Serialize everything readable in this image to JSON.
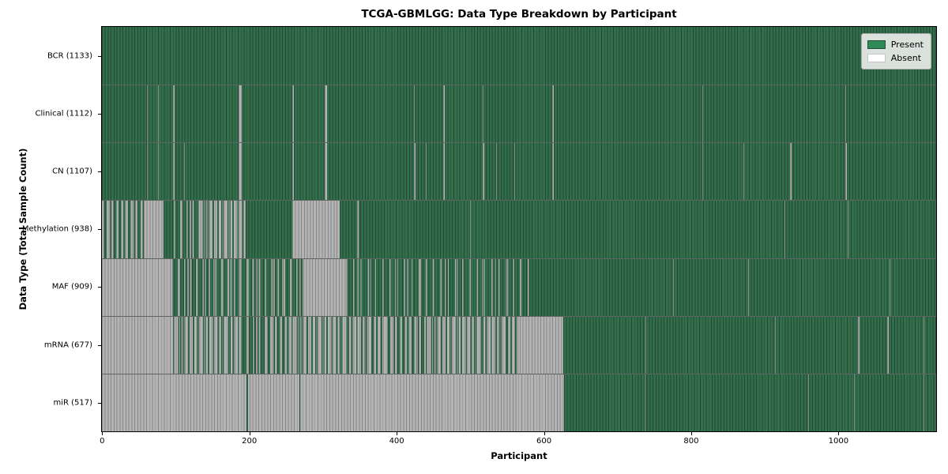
{
  "title": "TCGA-GBMLGG: Data Type Breakdown by Participant",
  "axes": {
    "xlabel": "Participant",
    "ylabel": "Data Type (Total Sample Count)"
  },
  "legend": {
    "items": [
      {
        "label": "Present",
        "color": "#2e8b57"
      },
      {
        "label": "Absent",
        "color": "#ffffff"
      }
    ]
  },
  "colors": {
    "present_fill": "#2e8b57",
    "present_edge": "#1d4a31",
    "absent_fill": "#ffffff",
    "absent_edge": "#878787",
    "background": "#ffffff"
  },
  "chart_data": {
    "type": "heatmap",
    "title": "TCGA-GBMLGG: Data Type Breakdown by Participant",
    "xlabel": "Participant",
    "ylabel": "Data Type (Total Sample Count)",
    "xlim": [
      0,
      1133
    ],
    "x_ticks": [
      0,
      200,
      400,
      600,
      800,
      1000
    ],
    "x_tick_labels": [
      "0",
      "200",
      "400",
      "600",
      "800",
      "1000"
    ],
    "legend": [
      "Present",
      "Absent"
    ],
    "legend_position": "upper right",
    "grid": false,
    "row_states_legend": "segments are [start_participant, end_participant, state]; state = present | absent | mix15/mix30/mix50/mix70 (mixed stripes, number = approx % absent)",
    "rows": [
      {
        "label": "BCR (1133)",
        "data_type": "BCR",
        "total_samples": 1133,
        "segments": [
          [
            0,
            1133,
            "present"
          ]
        ]
      },
      {
        "label": "Clinical (1112)",
        "data_type": "Clinical",
        "total_samples": 1112,
        "segments": [
          [
            0,
            1133,
            "present"
          ],
          [
            61,
            62,
            "absent"
          ],
          [
            76,
            77,
            "absent"
          ],
          [
            97,
            98,
            "absent"
          ],
          [
            186,
            190,
            "absent"
          ],
          [
            259,
            261,
            "absent"
          ],
          [
            303,
            306,
            "absent"
          ],
          [
            424,
            425,
            "absent"
          ],
          [
            464,
            465,
            "absent"
          ],
          [
            517,
            518,
            "absent"
          ],
          [
            612,
            613,
            "absent"
          ],
          [
            815,
            816,
            "absent"
          ],
          [
            1010,
            1011,
            "absent"
          ]
        ]
      },
      {
        "label": "CN (1107)",
        "data_type": "CN",
        "total_samples": 1107,
        "segments": [
          [
            0,
            1133,
            "present"
          ],
          [
            61,
            62,
            "absent"
          ],
          [
            76,
            77,
            "absent"
          ],
          [
            97,
            98,
            "absent"
          ],
          [
            112,
            113,
            "absent"
          ],
          [
            186,
            190,
            "absent"
          ],
          [
            259,
            261,
            "absent"
          ],
          [
            303,
            306,
            "absent"
          ],
          [
            424,
            426,
            "absent"
          ],
          [
            440,
            441,
            "absent"
          ],
          [
            464,
            465,
            "absent"
          ],
          [
            517,
            519,
            "absent"
          ],
          [
            535,
            536,
            "absent"
          ],
          [
            560,
            561,
            "absent"
          ],
          [
            612,
            613,
            "absent"
          ],
          [
            815,
            816,
            "absent"
          ],
          [
            871,
            872,
            "absent"
          ],
          [
            935,
            936,
            "absent"
          ],
          [
            1010,
            1012,
            "absent"
          ]
        ]
      },
      {
        "label": "Methylation (938)",
        "data_type": "Methylation",
        "total_samples": 938,
        "segments": [
          [
            0,
            57,
            "mix50"
          ],
          [
            57,
            84,
            "absent"
          ],
          [
            84,
            98,
            "present"
          ],
          [
            98,
            130,
            "mix30"
          ],
          [
            130,
            195,
            "mix70"
          ],
          [
            195,
            259,
            "present"
          ],
          [
            259,
            323,
            "absent"
          ],
          [
            323,
            1133,
            "present"
          ],
          [
            347,
            349,
            "absent"
          ],
          [
            500,
            501,
            "absent"
          ],
          [
            927,
            928,
            "absent"
          ],
          [
            1013,
            1014,
            "absent"
          ]
        ]
      },
      {
        "label": "MAF (909)",
        "data_type": "MAF",
        "total_samples": 909,
        "segments": [
          [
            0,
            94,
            "absent"
          ],
          [
            94,
            274,
            "mix30"
          ],
          [
            274,
            332,
            "absent"
          ],
          [
            332,
            580,
            "mix15"
          ],
          [
            580,
            1133,
            "present"
          ],
          [
            776,
            777,
            "absent"
          ],
          [
            878,
            879,
            "absent"
          ],
          [
            1070,
            1071,
            "absent"
          ]
        ]
      },
      {
        "label": "mRNA (677)",
        "data_type": "mRNA",
        "total_samples": 677,
        "segments": [
          [
            0,
            97,
            "absent"
          ],
          [
            97,
            188,
            "mix70"
          ],
          [
            188,
            222,
            "mix30"
          ],
          [
            222,
            258,
            "mix50"
          ],
          [
            258,
            385,
            "mix70"
          ],
          [
            385,
            440,
            "mix50"
          ],
          [
            440,
            568,
            "mix70"
          ],
          [
            568,
            627,
            "absent"
          ],
          [
            627,
            1133,
            "present"
          ],
          [
            738,
            739,
            "absent"
          ],
          [
            914,
            915,
            "absent"
          ],
          [
            1027,
            1029,
            "absent"
          ],
          [
            1067,
            1068,
            "absent"
          ],
          [
            1116,
            1117,
            "absent"
          ]
        ]
      },
      {
        "label": "miR (517)",
        "data_type": "miR",
        "total_samples": 517,
        "segments": [
          [
            0,
            628,
            "absent"
          ],
          [
            196,
            198,
            "present"
          ],
          [
            268,
            269,
            "present"
          ],
          [
            628,
            1133,
            "present"
          ],
          [
            737,
            738,
            "absent"
          ],
          [
            959,
            960,
            "absent"
          ],
          [
            1021,
            1023,
            "absent"
          ],
          [
            1116,
            1117,
            "absent"
          ]
        ]
      }
    ]
  }
}
